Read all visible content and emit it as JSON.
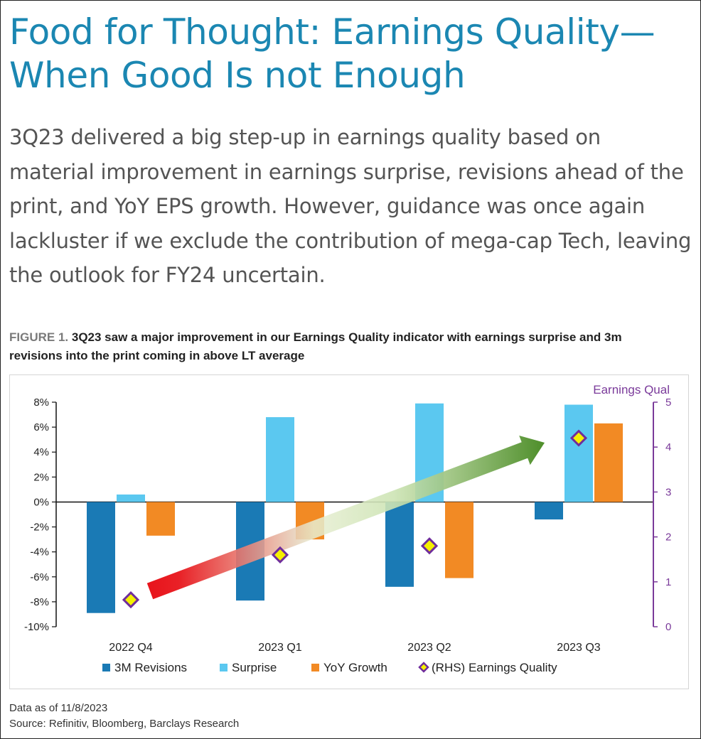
{
  "header": {
    "title": "Food for Thought: Earnings Quality— When Good Is not Enough",
    "intro": "3Q23 delivered a big step-up in earnings quality based on material improvement in earnings surprise, revisions ahead of the print, and YoY EPS growth. However, guidance was once again lackluster if we exclude the contribution of mega-cap Tech, leaving the outlook for FY24 uncertain."
  },
  "figure": {
    "label": "FIGURE 1.",
    "caption": "3Q23 saw a major improvement in our Earnings Quality indicator with earnings surprise and 3m revisions into the print coming in above LT average"
  },
  "chart_data": {
    "type": "bar",
    "categories": [
      "2022 Q4",
      "2023 Q1",
      "2023 Q2",
      "2023 Q3"
    ],
    "series": [
      {
        "name": "3M Revisions",
        "values": [
          -8.9,
          -7.9,
          -6.8,
          -1.4
        ],
        "color": "#1a7ab5"
      },
      {
        "name": "Surprise",
        "values": [
          0.6,
          6.8,
          7.9,
          7.8
        ],
        "color": "#5bc8f0"
      },
      {
        "name": "YoY Growth",
        "values": [
          -2.7,
          -3.0,
          -6.1,
          6.3
        ],
        "color": "#f28a24"
      }
    ],
    "line_series": {
      "name": "(RHS) Earnings Quality",
      "axis": "right",
      "values": [
        0.6,
        1.6,
        1.8,
        4.2
      ],
      "marker": "diamond",
      "marker_fill": "#f5f000",
      "marker_stroke": "#6f2d9c"
    },
    "ylim_left": [
      -10,
      8
    ],
    "yticks_left": [
      "8%",
      "6%",
      "4%",
      "2%",
      "0%",
      "-2%",
      "-4%",
      "-6%",
      "-8%",
      "-10%"
    ],
    "ylim_right": [
      0,
      5
    ],
    "yticks_right": [
      "5",
      "4",
      "3",
      "2",
      "1",
      "0"
    ],
    "right_axis_label": "Earnings Qual",
    "right_axis_color": "#7a3a9a",
    "trend_arrow": {
      "from": "red",
      "to": "green"
    },
    "legend_position": "bottom",
    "grid": false
  },
  "footer": {
    "data_as_of": "Data as of 11/8/2023",
    "source": "Source: Refinitiv, Bloomberg, Barclays Research"
  }
}
